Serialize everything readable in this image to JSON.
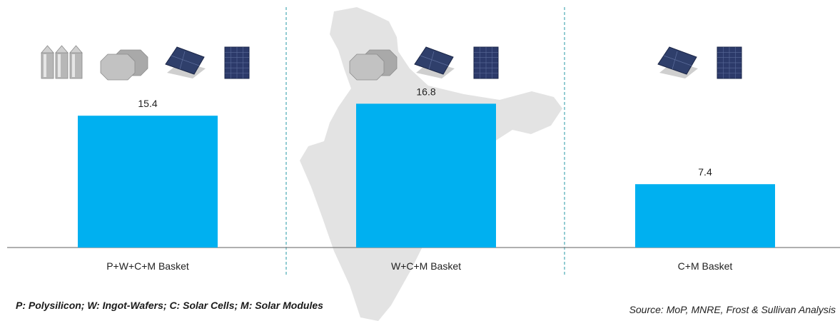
{
  "chart_data": {
    "type": "bar",
    "categories": [
      "P+W+C+M Basket",
      "W+C+M Basket",
      "C+M Basket"
    ],
    "values": [
      15.4,
      16.8,
      7.4
    ],
    "ylim": [
      0,
      20
    ],
    "bar_color": "#00B0F0",
    "grid": false,
    "category_icons": [
      [
        "polysilicon-icon",
        "ingot-wafer-icon",
        "solar-cell-icon",
        "solar-module-icon"
      ],
      [
        "ingot-wafer-icon",
        "solar-cell-icon",
        "solar-module-icon"
      ],
      [
        "solar-cell-icon",
        "solar-module-icon"
      ]
    ]
  },
  "footnote": "P: Polysilicon; W: Ingot-Wafers; C: Solar Cells; M: Solar Modules",
  "source": "Source: MoP, MNRE, Frost & Sullivan Analysis",
  "colors": {
    "bar": "#00B0F0",
    "divider": "#4aa9b5",
    "map": "#e3e3e3",
    "axis": "#7f7f7f"
  }
}
